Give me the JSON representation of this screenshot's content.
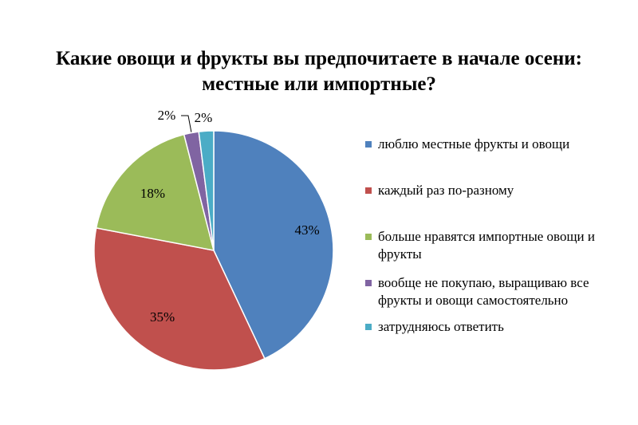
{
  "chart_data": {
    "type": "pie",
    "title": "Какие овощи и фрукты вы предпочитаете в начале осени: местные или импортные?",
    "legend_position": "right",
    "slices": [
      {
        "label": "люблю местные фрукты и овощи",
        "value": 43,
        "value_label": "43%",
        "color": "#4f81bd"
      },
      {
        "label": "каждый раз по-разному",
        "value": 35,
        "value_label": "35%",
        "color": "#c0504d"
      },
      {
        "label": "больше нравятся импортные овощи и фрукты",
        "value": 18,
        "value_label": "18%",
        "color": "#9bbb59"
      },
      {
        "label": "вообще не покупаю, выращиваю все фрукты и овощи самостоятельно",
        "value": 2,
        "value_label": "2%",
        "color": "#8064a2"
      },
      {
        "label": "затрудняюсь ответить",
        "value": 2,
        "value_label": "2%",
        "color": "#4bacc6"
      }
    ]
  }
}
